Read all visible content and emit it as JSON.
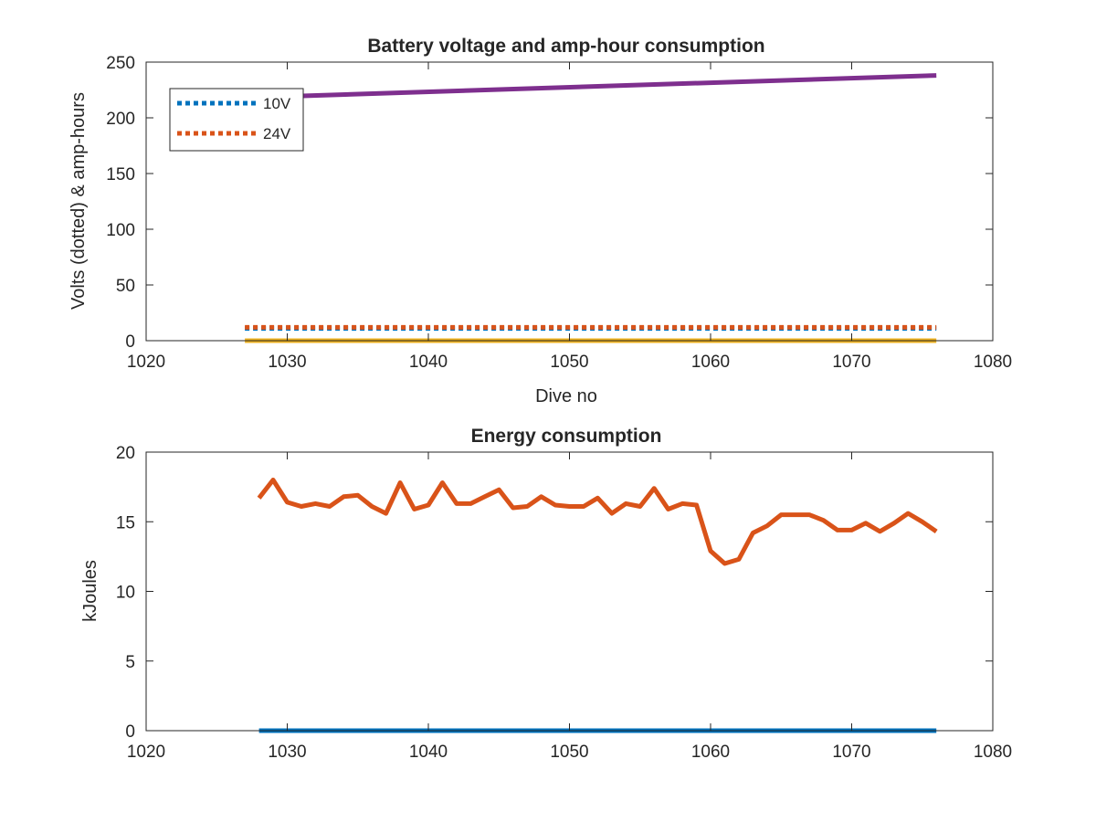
{
  "chart_data": [
    {
      "type": "line",
      "title": "Battery voltage and amp-hour consumption",
      "xlabel": "Dive no",
      "ylabel": "Volts (dotted) & amp-hours",
      "xlim": [
        1020,
        1080
      ],
      "ylim": [
        0,
        250
      ],
      "xticks": [
        1020,
        1030,
        1040,
        1050,
        1060,
        1070,
        1080
      ],
      "yticks": [
        0,
        50,
        100,
        150,
        200,
        250
      ],
      "grid": false,
      "legend_position": "top-left",
      "legend": [
        {
          "label": "10V",
          "color": "#0072BD",
          "style": "dotted"
        },
        {
          "label": "24V",
          "color": "#D95319",
          "style": "dotted"
        }
      ],
      "series": [
        {
          "name": "10V",
          "color": "#0072BD",
          "style": "dotted",
          "x": [
            1027,
            1076
          ],
          "y": [
            11,
            11
          ]
        },
        {
          "name": "24V",
          "color": "#D95319",
          "style": "dotted",
          "x": [
            1027,
            1076
          ],
          "y": [
            12,
            12
          ]
        },
        {
          "color": "#EDB120",
          "style": "solid",
          "x": [
            1027,
            1076
          ],
          "y": [
            0,
            0
          ]
        },
        {
          "color": "#7E2F8E",
          "style": "solid",
          "x": [
            1027,
            1076
          ],
          "y": [
            218,
            238
          ]
        }
      ]
    },
    {
      "type": "line",
      "title": "Energy consumption",
      "xlabel": "",
      "ylabel": "kJoules",
      "xlim": [
        1020,
        1080
      ],
      "ylim": [
        0,
        20
      ],
      "xticks": [
        1020,
        1030,
        1040,
        1050,
        1060,
        1070,
        1080
      ],
      "yticks": [
        0,
        5,
        10,
        15,
        20
      ],
      "grid": false,
      "series": [
        {
          "color": "#D95319",
          "style": "solid",
          "x": [
            1028,
            1029,
            1030,
            1031,
            1032,
            1033,
            1034,
            1035,
            1036,
            1037,
            1038,
            1039,
            1040,
            1041,
            1042,
            1043,
            1044,
            1045,
            1046,
            1047,
            1048,
            1049,
            1050,
            1051,
            1052,
            1053,
            1054,
            1055,
            1056,
            1057,
            1058,
            1059,
            1060,
            1061,
            1062,
            1063,
            1064,
            1065,
            1066,
            1067,
            1068,
            1069,
            1070,
            1071,
            1072,
            1073,
            1074,
            1075,
            1076
          ],
          "y": [
            16.7,
            18.0,
            16.4,
            16.1,
            16.3,
            16.1,
            16.8,
            16.9,
            16.1,
            15.6,
            17.8,
            15.9,
            16.2,
            17.8,
            16.3,
            16.3,
            16.8,
            17.3,
            16.0,
            16.1,
            16.8,
            16.2,
            16.1,
            16.1,
            16.7,
            15.6,
            16.3,
            16.1,
            17.4,
            15.9,
            16.3,
            16.2,
            12.9,
            12.0,
            12.3,
            14.2,
            14.7,
            15.5,
            15.5,
            15.5,
            15.1,
            14.4,
            14.4,
            14.9,
            14.3,
            14.9,
            15.6,
            15.0,
            14.3
          ]
        },
        {
          "color": "#0072BD",
          "style": "solid",
          "x": [
            1028,
            1076
          ],
          "y": [
            0,
            0
          ]
        }
      ]
    }
  ]
}
